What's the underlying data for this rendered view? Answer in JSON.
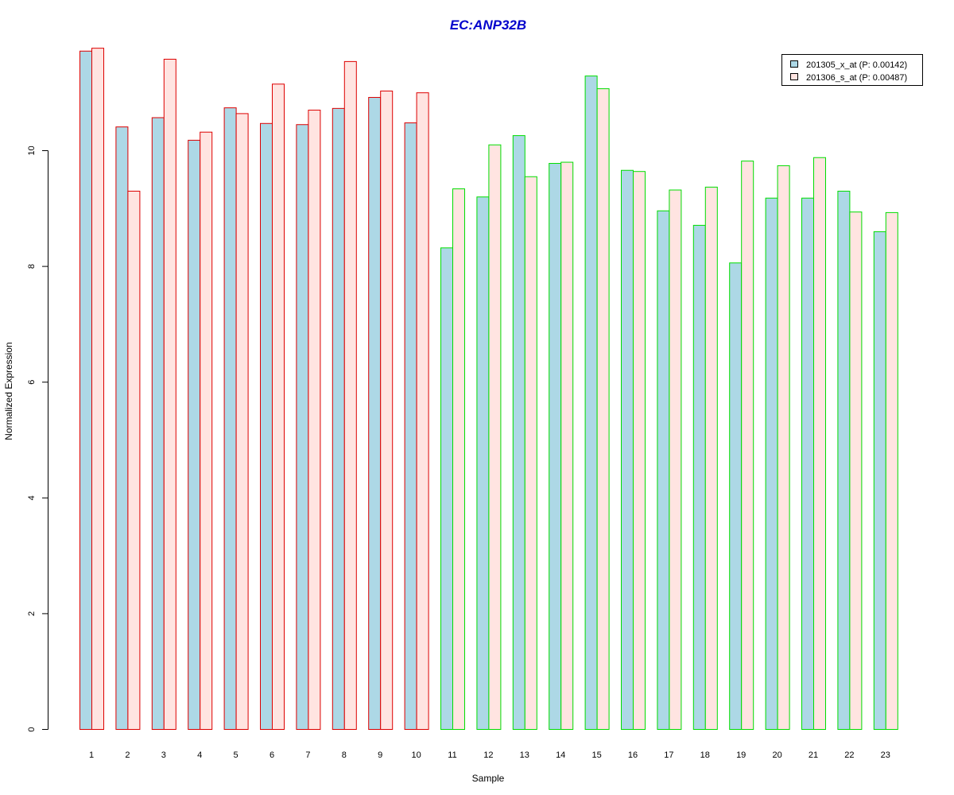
{
  "chart_data": {
    "type": "bar",
    "title": "EC:ANP32B",
    "xlabel": "Sample",
    "ylabel": "Normalized Expression",
    "categories": [
      "1",
      "2",
      "3",
      "4",
      "5",
      "6",
      "7",
      "8",
      "9",
      "10",
      "11",
      "12",
      "13",
      "14",
      "15",
      "16",
      "17",
      "18",
      "19",
      "20",
      "21",
      "22",
      "23"
    ],
    "y_ticks": [
      "0",
      "2",
      "4",
      "6",
      "8",
      "10"
    ],
    "ylim": [
      0,
      11.9
    ],
    "grid": false,
    "legend_position": "top-right",
    "series": [
      {
        "name": "201305_x_at (P: 0.00142)",
        "fill": "#add8e6",
        "values": [
          11.72,
          10.41,
          10.57,
          10.18,
          10.74,
          10.47,
          10.45,
          10.73,
          10.92,
          10.48,
          8.32,
          9.2,
          10.26,
          9.78,
          11.29,
          9.66,
          8.96,
          8.71,
          8.06,
          9.18,
          9.18,
          9.3,
          8.6
        ]
      },
      {
        "name": "201306_s_at (P: 0.00487)",
        "fill": "#ffe4e1",
        "values": [
          11.77,
          9.3,
          11.58,
          10.32,
          10.64,
          11.15,
          10.7,
          11.54,
          11.03,
          11.0,
          9.34,
          10.1,
          9.55,
          9.8,
          11.07,
          9.64,
          9.32,
          9.37,
          9.82,
          9.74,
          9.88,
          8.94,
          8.93
        ]
      }
    ],
    "group_border_colors": [
      "#dd0000",
      "#dd0000",
      "#dd0000",
      "#dd0000",
      "#dd0000",
      "#dd0000",
      "#dd0000",
      "#dd0000",
      "#dd0000",
      "#dd0000",
      "#00dd00",
      "#00dd00",
      "#00dd00",
      "#00dd00",
      "#00dd00",
      "#00dd00",
      "#00dd00",
      "#00dd00",
      "#00dd00",
      "#00dd00",
      "#00dd00",
      "#00dd00",
      "#00dd00"
    ],
    "title_color": "#0000cc"
  }
}
